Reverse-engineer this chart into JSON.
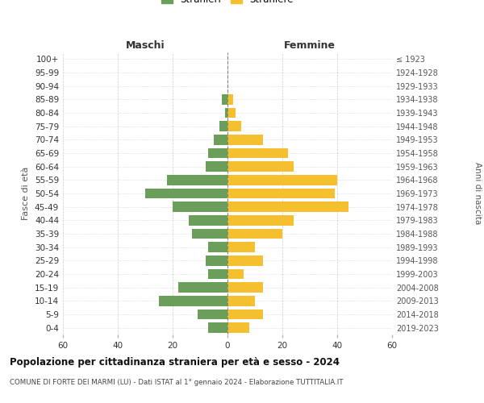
{
  "age_groups": [
    "0-4",
    "5-9",
    "10-14",
    "15-19",
    "20-24",
    "25-29",
    "30-34",
    "35-39",
    "40-44",
    "45-49",
    "50-54",
    "55-59",
    "60-64",
    "65-69",
    "70-74",
    "75-79",
    "80-84",
    "85-89",
    "90-94",
    "95-99",
    "100+"
  ],
  "birth_years": [
    "2019-2023",
    "2014-2018",
    "2009-2013",
    "2004-2008",
    "1999-2003",
    "1994-1998",
    "1989-1993",
    "1984-1988",
    "1979-1983",
    "1974-1978",
    "1969-1973",
    "1964-1968",
    "1959-1963",
    "1954-1958",
    "1949-1953",
    "1944-1948",
    "1939-1943",
    "1934-1938",
    "1929-1933",
    "1924-1928",
    "≤ 1923"
  ],
  "males": [
    7,
    11,
    25,
    18,
    7,
    8,
    7,
    13,
    14,
    20,
    30,
    22,
    8,
    7,
    5,
    3,
    1,
    2,
    0,
    0,
    0
  ],
  "females": [
    8,
    13,
    10,
    13,
    6,
    13,
    10,
    20,
    24,
    44,
    39,
    40,
    24,
    22,
    13,
    5,
    3,
    2,
    0,
    0,
    0
  ],
  "male_color": "#6a9e5a",
  "female_color": "#f5c030",
  "background_color": "#ffffff",
  "grid_color": "#cccccc",
  "title": "Popolazione per cittadinanza straniera per età e sesso - 2024",
  "subtitle": "COMUNE DI FORTE DEI MARMI (LU) - Dati ISTAT al 1° gennaio 2024 - Elaborazione TUTTITALIA.IT",
  "header_left": "Maschi",
  "header_right": "Femmine",
  "ylabel_left": "Fasce di età",
  "ylabel_right": "Anni di nascita",
  "xlim": 60
}
